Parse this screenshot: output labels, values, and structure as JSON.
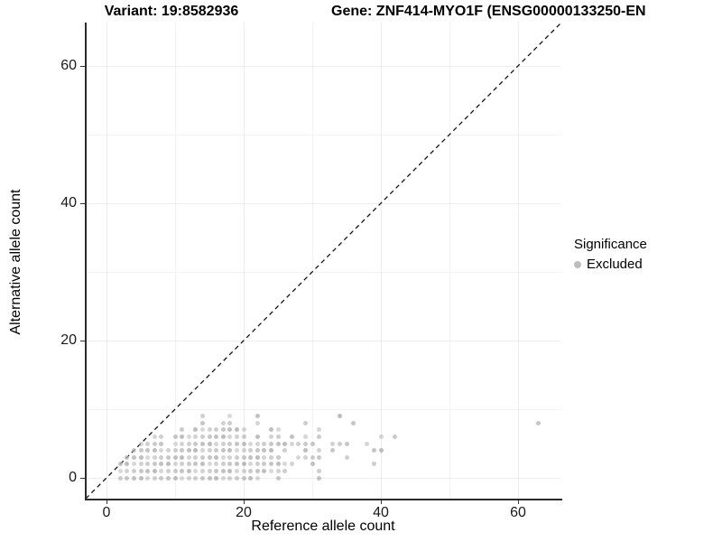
{
  "title_variant": "Variant: 19:8582936",
  "title_gene": "Gene: ZNF414-MYO1F (ENSG00000133250-EN",
  "axes": {
    "x_label": "Reference allele count",
    "y_label": "Alternative allele count"
  },
  "legend": {
    "title": "Significance",
    "items": [
      {
        "label": "Excluded",
        "color": "#bdbdbd"
      }
    ]
  },
  "chart_data": {
    "type": "scatter",
    "title": "Variant: 19:8582936",
    "panel_title_right": "Gene: ZNF414-MYO1F (ENSG00000133250-EN",
    "xlabel": "Reference allele count",
    "ylabel": "Alternative allele count",
    "xlim": [
      -3,
      66
    ],
    "ylim": [
      -3,
      66
    ],
    "x_ticks": [
      0,
      20,
      40,
      60
    ],
    "y_ticks": [
      0,
      20,
      40,
      60
    ],
    "x_minor": [
      10,
      30,
      50
    ],
    "y_minor": [
      10,
      30,
      50
    ],
    "grid": true,
    "reference_line": {
      "type": "abline",
      "slope": 1,
      "intercept": 0,
      "style": "dashed",
      "color": "#111111"
    },
    "legend": {
      "title": "Significance",
      "position": "right",
      "entries": [
        "Excluded"
      ]
    },
    "series": [
      {
        "name": "Excluded",
        "color": "#b8b8b8",
        "rows": [
          {
            "alt": 0,
            "refs": [
              2,
              3,
              4,
              5,
              6,
              7,
              8,
              9,
              10,
              11,
              12,
              13,
              14,
              15,
              16,
              17,
              18,
              19,
              20,
              21,
              22,
              25,
              31
            ]
          },
          {
            "alt": 1,
            "refs": [
              2,
              3,
              4,
              5,
              6,
              7,
              8,
              9,
              10,
              11,
              12,
              13,
              14,
              15,
              16,
              17,
              18,
              19,
              20,
              21,
              22,
              23,
              24,
              25,
              26,
              31
            ]
          },
          {
            "alt": 2,
            "refs": [
              2,
              3,
              4,
              5,
              6,
              7,
              8,
              9,
              10,
              11,
              12,
              13,
              14,
              15,
              16,
              17,
              18,
              19,
              20,
              21,
              22,
              23,
              24,
              25,
              26,
              27,
              30,
              39
            ]
          },
          {
            "alt": 3,
            "refs": [
              3,
              4,
              5,
              6,
              7,
              8,
              9,
              10,
              11,
              12,
              13,
              14,
              15,
              16,
              17,
              18,
              19,
              20,
              21,
              22,
              23,
              24,
              25,
              28,
              29,
              30,
              31,
              35
            ]
          },
          {
            "alt": 4,
            "refs": [
              4,
              5,
              6,
              7,
              8,
              9,
              10,
              11,
              12,
              13,
              14,
              15,
              16,
              17,
              18,
              19,
              20,
              21,
              22,
              23,
              24,
              26,
              29,
              31,
              33,
              39,
              40
            ]
          },
          {
            "alt": 5,
            "refs": [
              5,
              6,
              7,
              8,
              10,
              11,
              12,
              13,
              14,
              15,
              16,
              17,
              18,
              19,
              20,
              21,
              22,
              23,
              24,
              25,
              26,
              27,
              28,
              29,
              30,
              33,
              34,
              35,
              38
            ]
          },
          {
            "alt": 6,
            "refs": [
              7,
              8,
              10,
              11,
              12,
              13,
              14,
              15,
              16,
              17,
              18,
              19,
              20,
              22,
              24,
              25,
              27,
              29,
              31,
              40,
              42
            ]
          },
          {
            "alt": 7,
            "refs": [
              11,
              13,
              14,
              15,
              16,
              17,
              18,
              19,
              20,
              24,
              25,
              31
            ]
          },
          {
            "alt": 8,
            "refs": [
              14,
              17,
              18,
              22,
              29,
              36,
              63
            ]
          },
          {
            "alt": 9,
            "refs": [
              14,
              18,
              22,
              34
            ]
          }
        ]
      }
    ]
  }
}
